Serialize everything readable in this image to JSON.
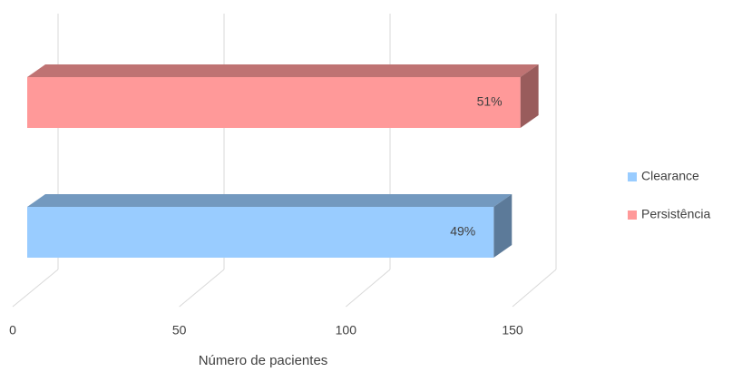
{
  "chart_data": {
    "type": "bar3d",
    "orientation": "horizontal",
    "categories": [
      null
    ],
    "series": [
      {
        "name": "Clearance",
        "color": "#99ccff",
        "values": [
          140
        ],
        "percentages": [
          49
        ],
        "percentage_labels": [
          "49%"
        ]
      },
      {
        "name": "Persistência",
        "color": "#ff9999",
        "values": [
          148
        ],
        "percentages": [
          51
        ],
        "percentage_labels": [
          "51%"
        ]
      }
    ],
    "xlabel": "Número de pacientes",
    "xlim": [
      0,
      150
    ],
    "xticks": [
      0,
      50,
      100,
      150
    ],
    "grid": true,
    "legend": "right"
  }
}
